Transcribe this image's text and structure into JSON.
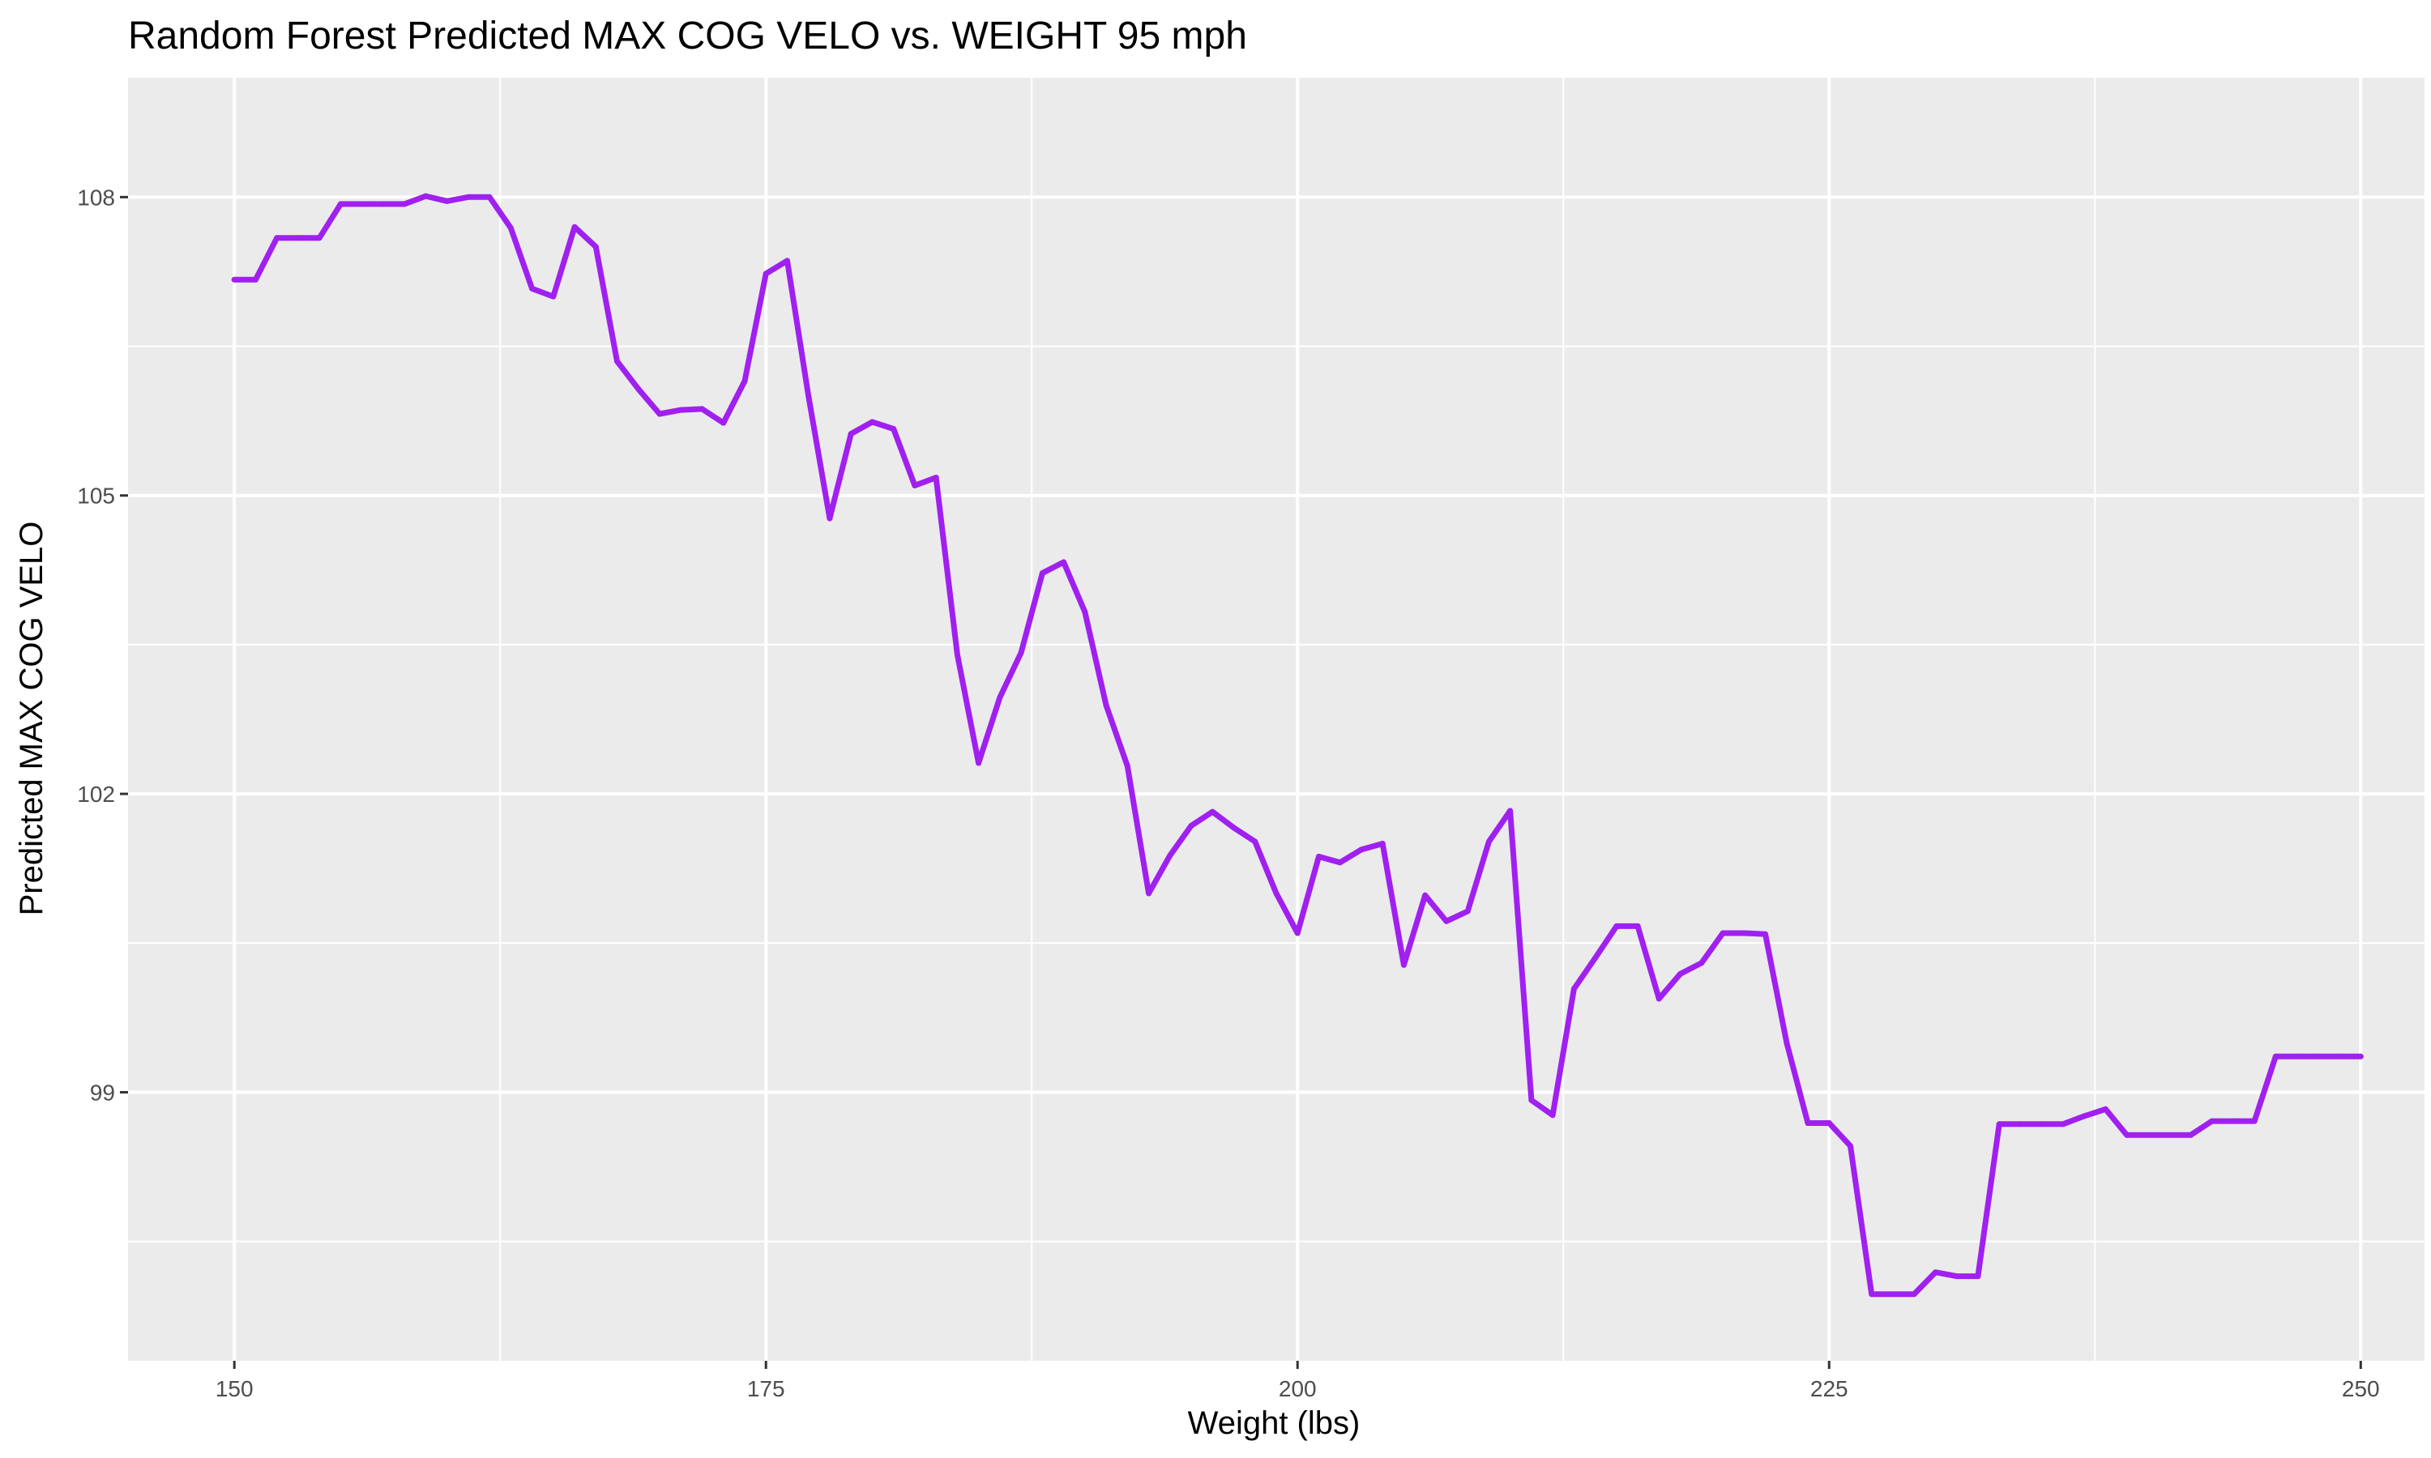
{
  "chart_data": {
    "type": "line",
    "title": "Random Forest Predicted MAX COG VELO vs. WEIGHT 95 mph",
    "xlabel": "Weight (lbs)",
    "ylabel": "Predicted MAX COG VELO",
    "xlim": [
      145,
      253
    ],
    "ylim": [
      96.3,
      109.2
    ],
    "x_ticks": [
      150,
      175,
      200,
      225,
      250
    ],
    "y_ticks": [
      99,
      102,
      105,
      108
    ],
    "grid": true,
    "legend": "none",
    "colors": {
      "line": "#a020f0",
      "panel": "#ebebeb",
      "grid": "#ffffff",
      "tick_text": "#4d4d4d"
    },
    "series": [
      {
        "x": [
          150,
          151,
          152,
          153,
          154,
          155,
          156,
          157,
          158,
          159,
          160,
          161,
          162,
          163,
          164,
          165,
          166,
          167,
          168,
          169,
          170,
          171,
          172,
          173,
          174,
          175,
          176,
          177,
          178,
          179,
          180,
          181,
          182,
          183,
          184,
          185,
          186,
          187,
          188,
          189,
          190,
          191,
          192,
          193,
          194,
          195,
          196,
          197,
          198,
          199,
          200,
          201,
          202,
          203,
          204,
          205,
          206,
          207,
          208,
          209,
          210,
          211,
          212,
          213,
          214,
          215,
          216,
          217,
          218,
          219,
          220,
          221,
          222,
          223,
          224,
          225,
          226,
          227,
          228,
          229,
          230,
          231,
          232,
          233,
          234,
          235,
          236,
          237,
          238,
          239,
          240,
          241,
          242,
          243,
          244,
          245,
          246,
          247,
          248,
          249,
          250
        ],
        "values": [
          107.17,
          107.17,
          107.59,
          107.59,
          107.59,
          107.93,
          107.93,
          107.93,
          107.93,
          108.01,
          107.96,
          108.0,
          108.0,
          107.69,
          107.08,
          107.0,
          107.7,
          107.5,
          106.35,
          106.07,
          105.82,
          105.86,
          105.87,
          105.73,
          106.15,
          107.23,
          107.36,
          106.0,
          104.77,
          105.62,
          105.74,
          105.67,
          105.1,
          105.18,
          103.4,
          102.31,
          102.97,
          103.42,
          104.22,
          104.33,
          103.83,
          102.89,
          102.28,
          101.0,
          101.38,
          101.68,
          101.82,
          101.66,
          101.52,
          101.0,
          100.6,
          101.37,
          101.31,
          101.44,
          101.5,
          100.28,
          100.98,
          100.72,
          100.82,
          101.52,
          101.83,
          98.92,
          98.77,
          100.04,
          100.35,
          100.67,
          100.67,
          99.94,
          100.19,
          100.3,
          100.6,
          100.6,
          100.59,
          99.5,
          98.69,
          98.69,
          98.46,
          96.97,
          96.97,
          96.97,
          97.19,
          97.15,
          97.15,
          98.68,
          98.68,
          98.68,
          98.68,
          98.76,
          98.83,
          98.57,
          98.57,
          98.57,
          98.57,
          98.71,
          98.71,
          98.71,
          99.36,
          99.36,
          99.36,
          99.36,
          99.36
        ]
      }
    ]
  }
}
